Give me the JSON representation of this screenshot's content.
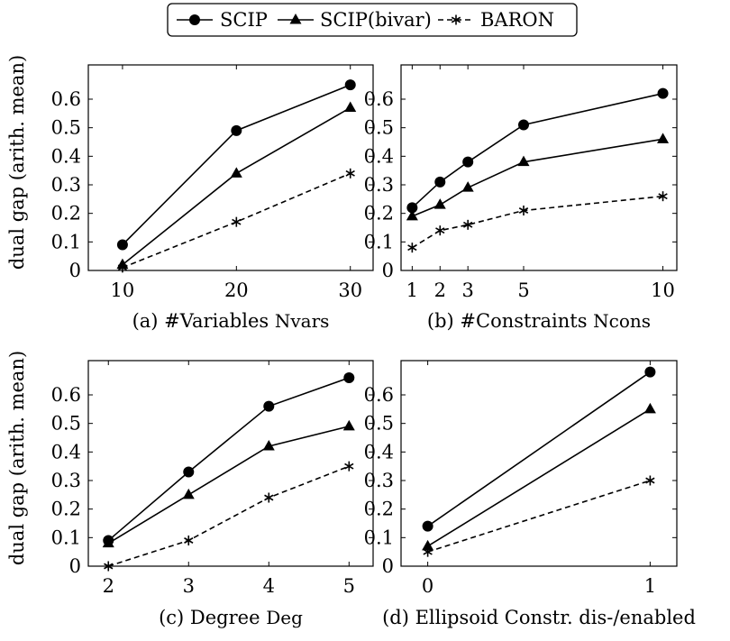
{
  "legend": [
    {
      "name": "SCIP",
      "marker": "circle",
      "dash": false
    },
    {
      "name": "SCIP(bivar)",
      "marker": "triangle",
      "dash": false
    },
    {
      "name": "BARON",
      "marker": "asterisk",
      "dash": true
    }
  ],
  "chart_data": [
    {
      "type": "line",
      "caption_prefix": "(a) #Variables ",
      "caption_code": "Nvars",
      "ylabel": "dual gap (arith. mean)",
      "x": [
        10,
        20,
        30
      ],
      "xlim": [
        7,
        32
      ],
      "xticks": [
        10,
        20,
        30
      ],
      "ylim": [
        0,
        0.72
      ],
      "yticks": [
        0,
        0.1,
        0.2,
        0.3,
        0.4,
        0.5,
        0.6
      ],
      "series": [
        {
          "name": "SCIP",
          "values": [
            0.09,
            0.49,
            0.65
          ]
        },
        {
          "name": "SCIP(bivar)",
          "values": [
            0.02,
            0.34,
            0.57
          ]
        },
        {
          "name": "BARON",
          "values": [
            0.01,
            0.17,
            0.34
          ]
        }
      ]
    },
    {
      "type": "line",
      "caption_prefix": "(b) #Constraints ",
      "caption_code": "Ncons",
      "ylabel": "",
      "x": [
        1,
        2,
        3,
        5,
        10
      ],
      "xlim": [
        0.6,
        10.5
      ],
      "xticks": [
        1,
        2,
        3,
        5,
        10
      ],
      "ylim": [
        0,
        0.72
      ],
      "yticks": [
        0,
        0.1,
        0.2,
        0.3,
        0.4,
        0.5,
        0.6
      ],
      "series": [
        {
          "name": "SCIP",
          "values": [
            0.22,
            0.31,
            0.38,
            0.51,
            0.62
          ]
        },
        {
          "name": "SCIP(bivar)",
          "values": [
            0.19,
            0.23,
            0.29,
            0.38,
            0.46
          ]
        },
        {
          "name": "BARON",
          "values": [
            0.08,
            0.14,
            0.16,
            0.21,
            0.26
          ]
        }
      ]
    },
    {
      "type": "line",
      "caption_prefix": "(c) Degree ",
      "caption_code": "Deg",
      "ylabel": "dual gap (arith. mean)",
      "x": [
        2,
        3,
        4,
        5
      ],
      "xlim": [
        1.75,
        5.3
      ],
      "xticks": [
        2,
        3,
        4,
        5
      ],
      "ylim": [
        0,
        0.72
      ],
      "yticks": [
        0,
        0.1,
        0.2,
        0.3,
        0.4,
        0.5,
        0.6
      ],
      "series": [
        {
          "name": "SCIP",
          "values": [
            0.09,
            0.33,
            0.56,
            0.66
          ]
        },
        {
          "name": "SCIP(bivar)",
          "values": [
            0.08,
            0.25,
            0.42,
            0.49
          ]
        },
        {
          "name": "BARON",
          "values": [
            0.0,
            0.09,
            0.24,
            0.35
          ]
        }
      ]
    },
    {
      "type": "line",
      "caption_prefix": "(d) Ellipsoid Constr. dis-/enabled",
      "caption_code": "",
      "ylabel": "",
      "x": [
        0,
        1
      ],
      "xlim": [
        -0.12,
        1.12
      ],
      "xticks": [
        0,
        1
      ],
      "ylim": [
        0,
        0.72
      ],
      "yticks": [
        0,
        0.1,
        0.2,
        0.3,
        0.4,
        0.5,
        0.6
      ],
      "series": [
        {
          "name": "SCIP",
          "values": [
            0.14,
            0.68
          ]
        },
        {
          "name": "SCIP(bivar)",
          "values": [
            0.07,
            0.55
          ]
        },
        {
          "name": "BARON",
          "values": [
            0.05,
            0.3
          ]
        }
      ]
    }
  ]
}
